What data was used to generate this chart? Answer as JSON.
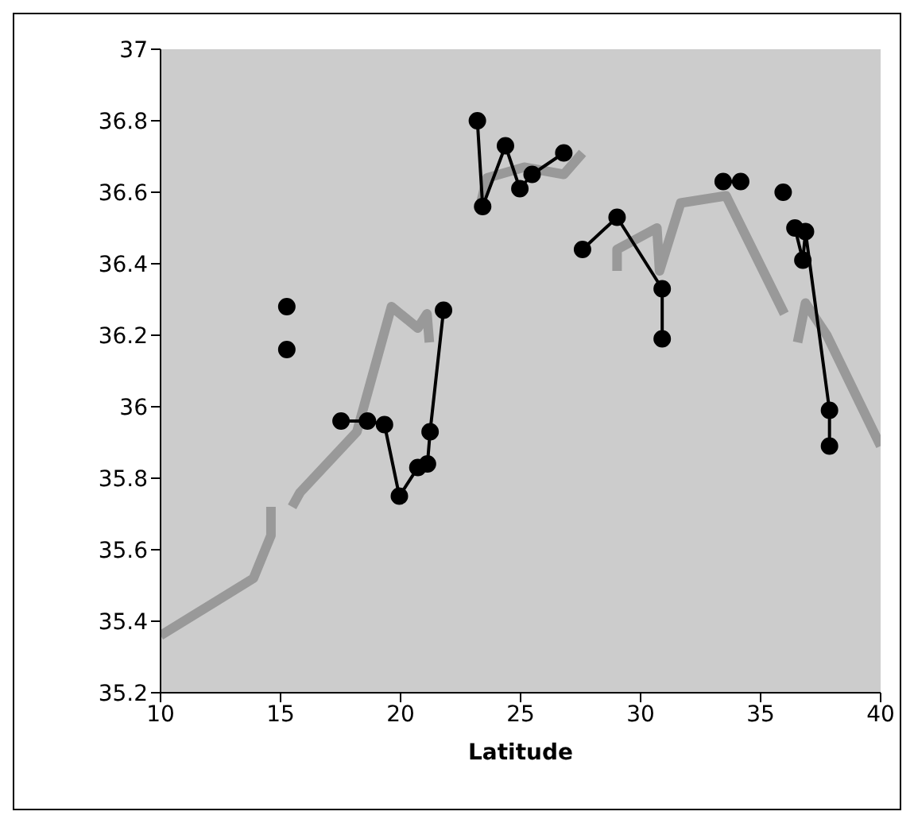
{
  "chart_data": {
    "type": "line",
    "xlabel": "Latitude",
    "xlim": [
      10,
      40
    ],
    "xticks": [
      10,
      15,
      20,
      25,
      30,
      35,
      40
    ],
    "ylim": [
      35.2,
      37
    ],
    "yticks": [
      35.2,
      35.4,
      35.6,
      35.8,
      36,
      36.2,
      36.4,
      36.6,
      36.8,
      37
    ],
    "grid": false,
    "series": [
      {
        "color": "#999999",
        "marker": "none",
        "x": [
          10,
          13.87,
          14.6,
          14.6,
          null,
          15.48,
          15.81,
          18.18,
          19.62,
          20.72,
          21.1,
          21.2,
          null,
          23.27,
          23.6,
          25.15,
          26.8,
          27.58,
          null,
          29.02,
          29.02,
          30.68,
          30.79,
          31.67,
          33.56,
          35.99,
          null,
          36.54,
          36.87,
          37.76,
          40
        ],
        "values": [
          35.36,
          35.52,
          35.64,
          35.72,
          null,
          35.72,
          35.76,
          35.93,
          36.28,
          36.22,
          36.26,
          36.18,
          null,
          36.55,
          36.64,
          36.67,
          36.65,
          36.71,
          null,
          36.38,
          36.44,
          36.5,
          36.38,
          36.57,
          36.59,
          36.26,
          null,
          36.18,
          36.29,
          36.2,
          35.89
        ]
      },
      {
        "color": "#000000",
        "marker": "circle",
        "x": [
          15.26,
          null,
          15.26,
          null,
          17.52,
          18.62,
          19.33,
          19.95,
          20.72,
          21.12,
          21.23,
          21.79,
          null,
          23.2,
          23.42,
          24.37,
          24.97,
          25.48,
          26.8,
          null,
          27.58,
          29.02,
          30.9,
          30.9,
          null,
          33.44,
          34.17,
          null,
          35.94,
          null,
          36.43,
          36.76,
          36.87,
          37.87,
          37.87
        ],
        "values": [
          36.28,
          null,
          36.16,
          null,
          35.96,
          35.96,
          35.95,
          35.75,
          35.83,
          35.84,
          35.93,
          36.27,
          null,
          36.8,
          36.56,
          36.73,
          36.61,
          36.65,
          36.71,
          null,
          36.44,
          36.53,
          36.33,
          36.19,
          null,
          36.63,
          36.63,
          null,
          36.6,
          null,
          36.5,
          36.41,
          36.49,
          35.99,
          35.89
        ]
      }
    ]
  }
}
